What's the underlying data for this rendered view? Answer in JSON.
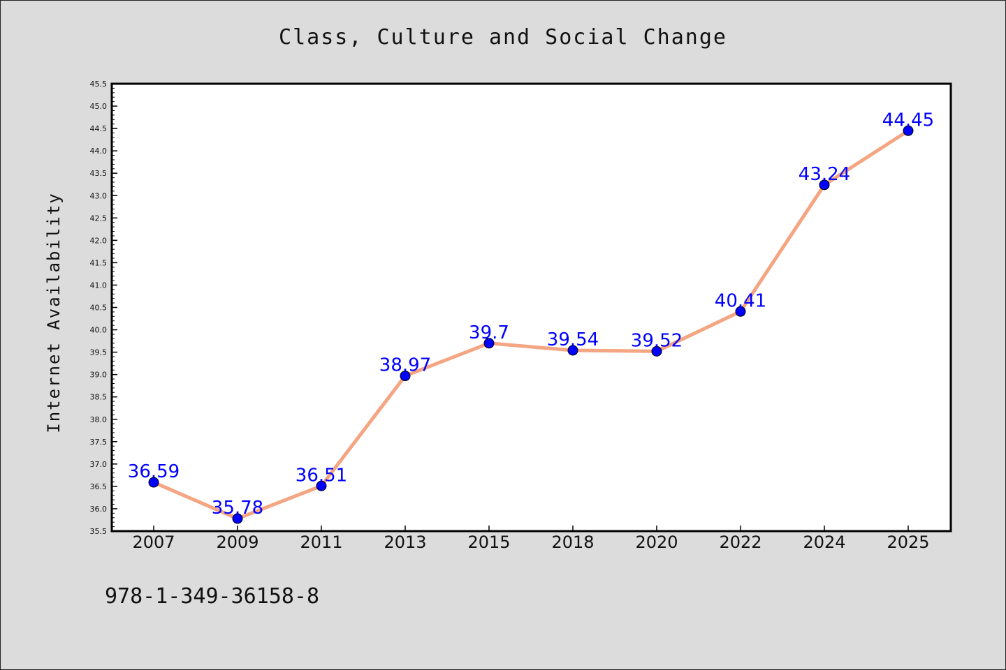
{
  "chart_data": {
    "type": "line",
    "title": "Class, Culture and Social Change",
    "xlabel": "",
    "ylabel": "Internet Availability",
    "categories": [
      "2007",
      "2009",
      "2011",
      "2013",
      "2015",
      "2018",
      "2020",
      "2022",
      "2024",
      "2025"
    ],
    "series": [
      {
        "values": [
          36.59,
          35.78,
          36.51,
          38.97,
          39.7,
          39.54,
          39.52,
          40.41,
          43.24,
          44.45
        ],
        "labels": [
          "36.59",
          "35.78",
          "36.51",
          "38.97",
          "39.7",
          "39.54",
          "39.52",
          "40.41",
          "43.24",
          "44.45"
        ],
        "line_color": "#f4a582",
        "marker_color": "#0000ff"
      }
    ],
    "ylim": [
      35.5,
      45.5
    ],
    "yticks": [
      "35.5",
      "36.0",
      "36.5",
      "37.0",
      "37.5",
      "38.0",
      "38.5",
      "39.0",
      "39.5",
      "40.0",
      "40.5",
      "41.0",
      "41.5",
      "42.0",
      "42.5",
      "43.0",
      "43.5",
      "44.0",
      "44.5",
      "45.0",
      "45.5"
    ],
    "grid": false,
    "legend": "none",
    "colors": {
      "background": "#dcdcdc",
      "plot_background": "#ffffff",
      "label_color": "#0000ff"
    }
  },
  "footer": {
    "isbn": "978-1-349-36158-8"
  }
}
